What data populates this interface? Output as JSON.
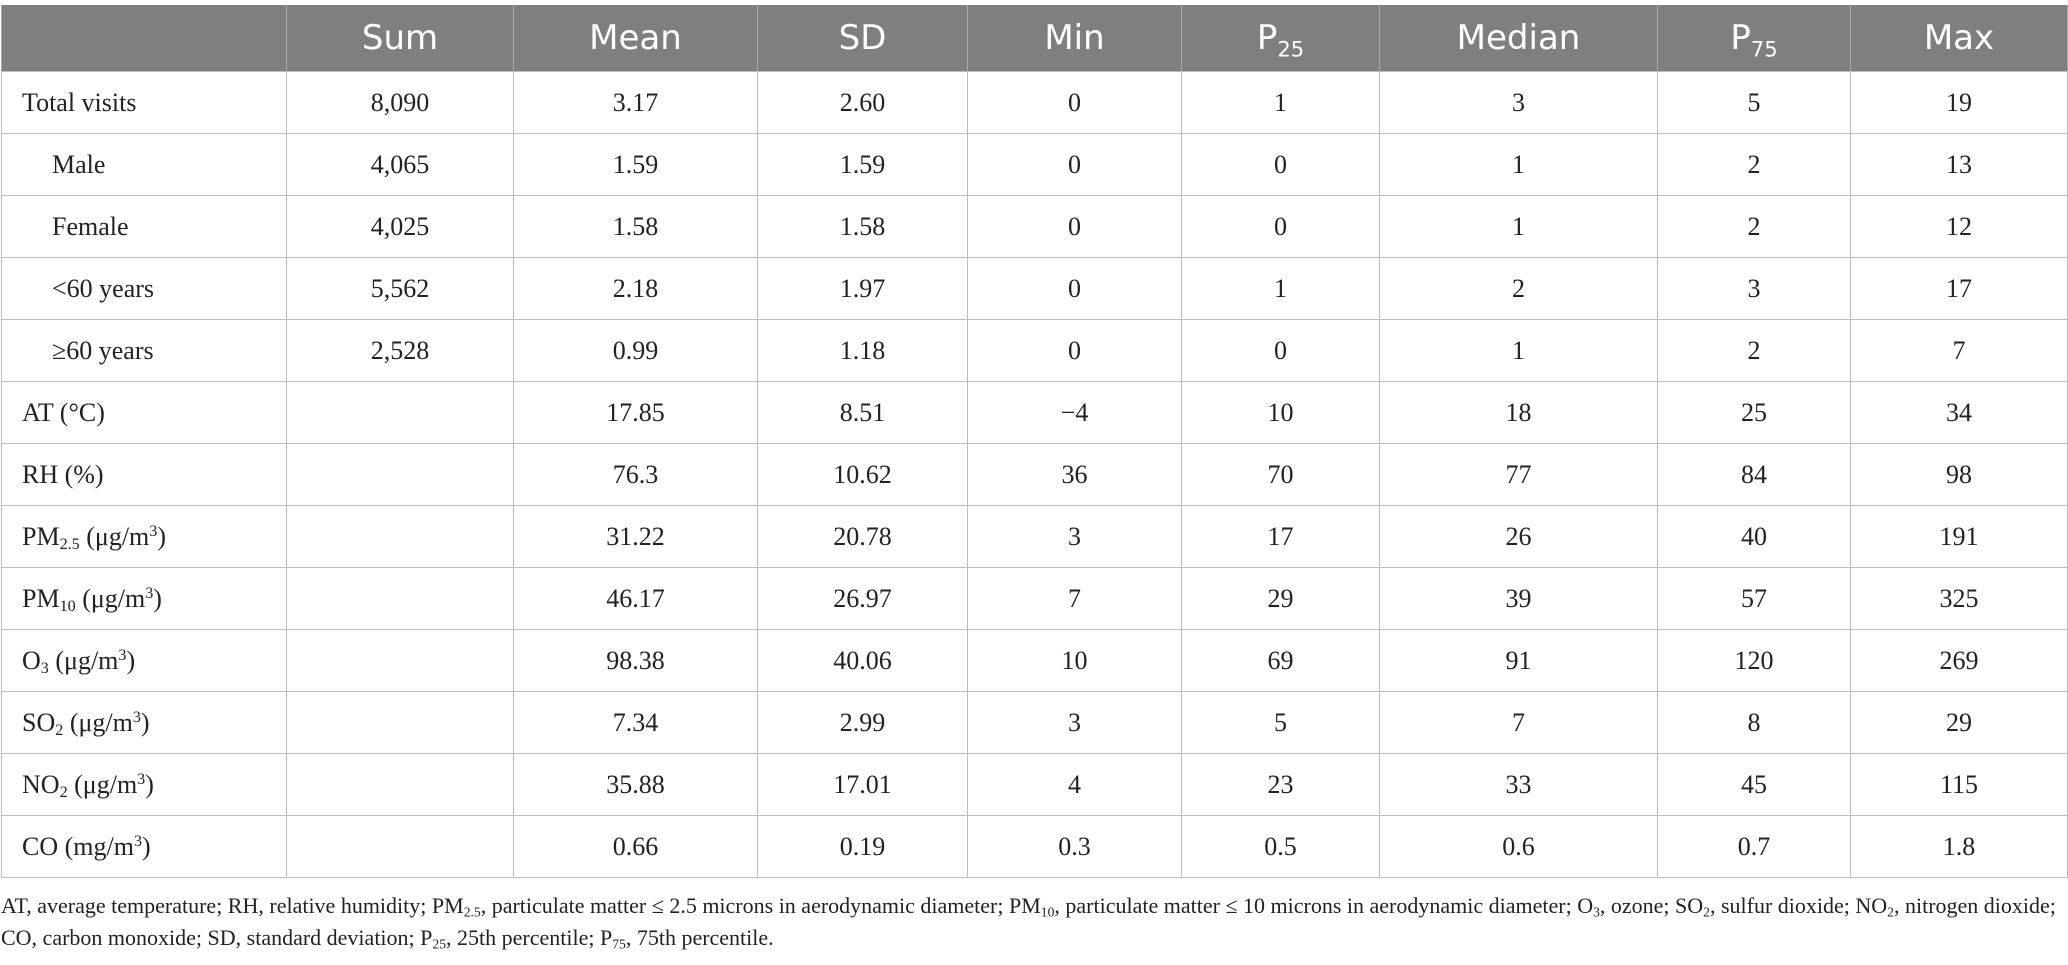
{
  "table": {
    "headers": [
      "",
      "Sum",
      "Mean",
      "SD",
      "Min",
      "P25",
      "Median",
      "P75",
      "Max"
    ],
    "rows": [
      {
        "label": "Total visits",
        "indent": false,
        "cells": [
          "8,090",
          "3.17",
          "2.60",
          "0",
          "1",
          "3",
          "5",
          "19"
        ]
      },
      {
        "label": "Male",
        "indent": true,
        "cells": [
          "4,065",
          "1.59",
          "1.59",
          "0",
          "0",
          "1",
          "2",
          "13"
        ]
      },
      {
        "label": "Female",
        "indent": true,
        "cells": [
          "4,025",
          "1.58",
          "1.58",
          "0",
          "0",
          "1",
          "2",
          "12"
        ]
      },
      {
        "label": "<60 years",
        "indent": true,
        "cells": [
          "5,562",
          "2.18",
          "1.97",
          "0",
          "1",
          "2",
          "3",
          "17"
        ]
      },
      {
        "label": "≥60 years",
        "indent": true,
        "cells": [
          "2,528",
          "0.99",
          "1.18",
          "0",
          "0",
          "1",
          "2",
          "7"
        ]
      },
      {
        "label": "AT (°C)",
        "indent": false,
        "cells": [
          "",
          "17.85",
          "8.51",
          "−4",
          "10",
          "18",
          "25",
          "34"
        ]
      },
      {
        "label": "RH (%)",
        "indent": false,
        "cells": [
          "",
          "76.3",
          "10.62",
          "36",
          "70",
          "77",
          "84",
          "98"
        ]
      },
      {
        "label": "PM2.5 (μg/m3)",
        "indent": false,
        "cells": [
          "",
          "31.22",
          "20.78",
          "3",
          "17",
          "26",
          "40",
          "191"
        ]
      },
      {
        "label": "PM10 (μg/m3)",
        "indent": false,
        "cells": [
          "",
          "46.17",
          "26.97",
          "7",
          "29",
          "39",
          "57",
          "325"
        ]
      },
      {
        "label": "O3 (μg/m3)",
        "indent": false,
        "cells": [
          "",
          "98.38",
          "40.06",
          "10",
          "69",
          "91",
          "120",
          "269"
        ]
      },
      {
        "label": "SO2 (μg/m3)",
        "indent": false,
        "cells": [
          "",
          "7.34",
          "2.99",
          "3",
          "5",
          "7",
          "8",
          "29"
        ]
      },
      {
        "label": "NO2 (μg/m3)",
        "indent": false,
        "cells": [
          "",
          "35.88",
          "17.01",
          "4",
          "23",
          "33",
          "45",
          "115"
        ]
      },
      {
        "label": "CO (mg/m3)",
        "indent": false,
        "cells": [
          "",
          "0.66",
          "0.19",
          "0.3",
          "0.5",
          "0.6",
          "0.7",
          "1.8"
        ]
      }
    ]
  },
  "footnote": "AT, average temperature; RH, relative humidity; PM2.5, particulate matter ≤ 2.5 microns in aerodynamic diameter; PM10, particulate matter ≤ 10 microns in aerodynamic diameter; O3, ozone; SO2, sulfur dioxide; NO2, nitrogen dioxide; CO, carbon monoxide; SD, standard deviation; P25, 25th percentile; P75, 75th percentile."
}
